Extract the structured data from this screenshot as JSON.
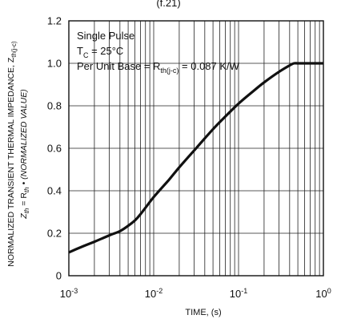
{
  "top_text": "(f.21)",
  "chart_data": {
    "type": "line",
    "x_scale": "log",
    "xlim": [
      0.001,
      1
    ],
    "ylim": [
      0,
      1.2
    ],
    "xlabel": "TIME, (s)",
    "ylabel_line1": "NORMALIZED TRANSIENT THERMAL IMPEDANCE, Z",
    "ylabel_line1_sub": "th(j-c)",
    "ylabel_line2_z": "Z",
    "ylabel_line2_zsub": "th",
    "ylabel_line2_eq": " = R",
    "ylabel_line2_rsub": "th",
    "ylabel_line2_rest": " • (NORMALIZED VALUE)",
    "x_ticks": [
      {
        "value": 0.001,
        "base": "10",
        "exp": "-3"
      },
      {
        "value": 0.01,
        "base": "10",
        "exp": "-2"
      },
      {
        "value": 0.1,
        "base": "10",
        "exp": "-1"
      },
      {
        "value": 1,
        "base": "10",
        "exp": "0"
      }
    ],
    "y_ticks": [
      "0",
      "0.2",
      "0.4",
      "0.6",
      "0.8",
      "1.0",
      "1.2"
    ],
    "y_tick_values": [
      0,
      0.2,
      0.4,
      0.6,
      0.8,
      1.0,
      1.2
    ],
    "annotations": [
      {
        "text": "Single Pulse"
      },
      {
        "text": "T",
        "sub": "C",
        "rest": " = 25°C"
      },
      {
        "text": "Per Unit Base = R",
        "sub": "th(j-c)",
        "rest": " = 0.087 K/W"
      }
    ],
    "grid": true,
    "series": [
      {
        "x": [
          0.001,
          0.0015,
          0.002,
          0.003,
          0.004,
          0.005,
          0.006,
          0.007,
          0.008,
          0.01,
          0.015,
          0.02,
          0.03,
          0.05,
          0.07,
          0.1,
          0.15,
          0.2,
          0.3,
          0.4,
          0.45,
          0.5,
          0.6,
          0.8,
          1.0
        ],
        "y": [
          0.11,
          0.14,
          0.16,
          0.19,
          0.21,
          0.235,
          0.26,
          0.29,
          0.32,
          0.37,
          0.45,
          0.51,
          0.59,
          0.69,
          0.75,
          0.81,
          0.87,
          0.91,
          0.96,
          0.99,
          1.0,
          1.0,
          1.0,
          1.0,
          1.0
        ]
      }
    ]
  }
}
